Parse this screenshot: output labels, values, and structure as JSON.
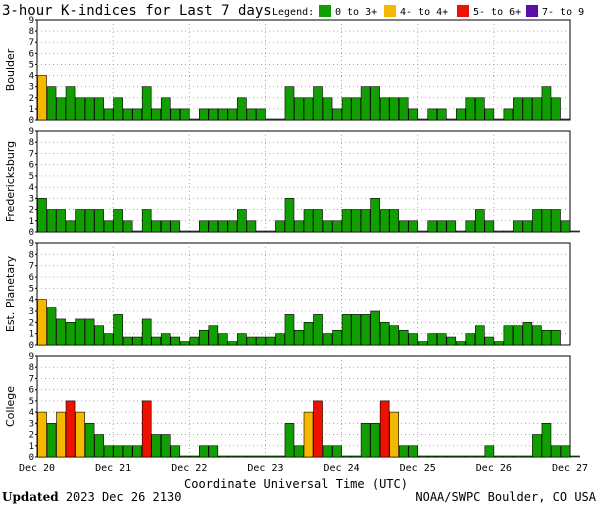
{
  "title": "3-hour K-indices for Last 7 days",
  "legend": {
    "label": "Legend:",
    "items": [
      {
        "label": "0 to 3+",
        "color": "#119e00"
      },
      {
        "label": "4- to 4+",
        "color": "#f5b800"
      },
      {
        "label": "5- to 6+",
        "color": "#ee1100"
      },
      {
        "label": "7- to 9",
        "color": "#5a0ea8"
      }
    ]
  },
  "footer": {
    "updated_label": "Updated",
    "updated_time": "2023 Dec 26 2130",
    "source": "NOAA/SWPC Boulder, CO USA"
  },
  "chart_data": [
    {
      "type": "bar",
      "title": "3-hour K-indices for Last 7 days",
      "ylabel": "Boulder",
      "xlabel": "Coordinate Universal Time (UTC)",
      "ylim": [
        0,
        9
      ],
      "x_ticks": [
        "Dec 20",
        "Dec 21",
        "Dec 22",
        "Dec 23",
        "Dec 24",
        "Dec 25",
        "Dec 26",
        "Dec 27"
      ],
      "grid": true,
      "values": [
        4,
        3,
        2,
        3,
        2,
        2,
        2,
        1,
        2,
        1,
        1,
        3,
        1,
        2,
        1,
        1,
        0,
        1,
        1,
        1,
        1,
        2,
        1,
        1,
        0,
        0,
        3,
        2,
        2,
        3,
        2,
        1,
        2,
        2,
        3,
        3,
        2,
        2,
        2,
        1,
        0,
        1,
        1,
        0,
        1,
        2,
        2,
        1,
        0,
        1,
        2,
        2,
        2,
        3,
        2,
        0
      ]
    },
    {
      "type": "bar",
      "ylabel": "Fredericksburg",
      "ylim": [
        0,
        9
      ],
      "grid": true,
      "values": [
        3,
        2,
        2,
        1,
        2,
        2,
        2,
        1,
        2,
        1,
        0,
        2,
        1,
        1,
        1,
        0,
        0,
        1,
        1,
        1,
        1,
        2,
        1,
        0,
        0,
        1,
        3,
        1,
        2,
        2,
        1,
        1,
        2,
        2,
        2,
        3,
        2,
        2,
        1,
        1,
        0,
        1,
        1,
        1,
        0,
        1,
        2,
        1,
        0,
        0,
        1,
        1,
        2,
        2,
        2,
        1,
        0
      ]
    },
    {
      "type": "bar",
      "ylabel": "Est. Planetary",
      "ylim": [
        0,
        9
      ],
      "grid": true,
      "values": [
        4,
        3.3,
        2.3,
        2,
        2.3,
        2.3,
        1.7,
        1,
        2.7,
        0.7,
        0.7,
        2.3,
        0.7,
        1,
        0.7,
        0.3,
        0.7,
        1.3,
        1.7,
        1,
        0.3,
        1,
        0.7,
        0.7,
        0.7,
        1,
        2.7,
        1.3,
        2,
        2.7,
        1,
        1.3,
        2.7,
        2.7,
        2.7,
        3,
        2,
        1.7,
        1.3,
        1,
        0.3,
        1,
        1,
        0.7,
        0.3,
        1,
        1.7,
        0.7,
        0.3,
        1.7,
        1.7,
        2,
        1.7,
        1.3,
        1.3
      ]
    },
    {
      "type": "bar",
      "ylabel": "College",
      "ylim": [
        0,
        9
      ],
      "grid": true,
      "values": [
        4,
        3,
        4,
        5,
        4,
        3,
        2,
        1,
        1,
        1,
        1,
        5,
        2,
        2,
        1,
        0,
        0,
        1,
        1,
        0,
        0,
        0,
        0,
        0,
        0,
        0,
        3,
        1,
        4,
        5,
        1,
        1,
        0,
        0,
        3,
        3,
        5,
        4,
        1,
        1,
        0,
        0,
        0,
        0,
        0,
        0,
        0,
        1,
        0,
        0,
        0,
        0,
        2,
        3,
        1,
        1,
        0
      ]
    }
  ]
}
